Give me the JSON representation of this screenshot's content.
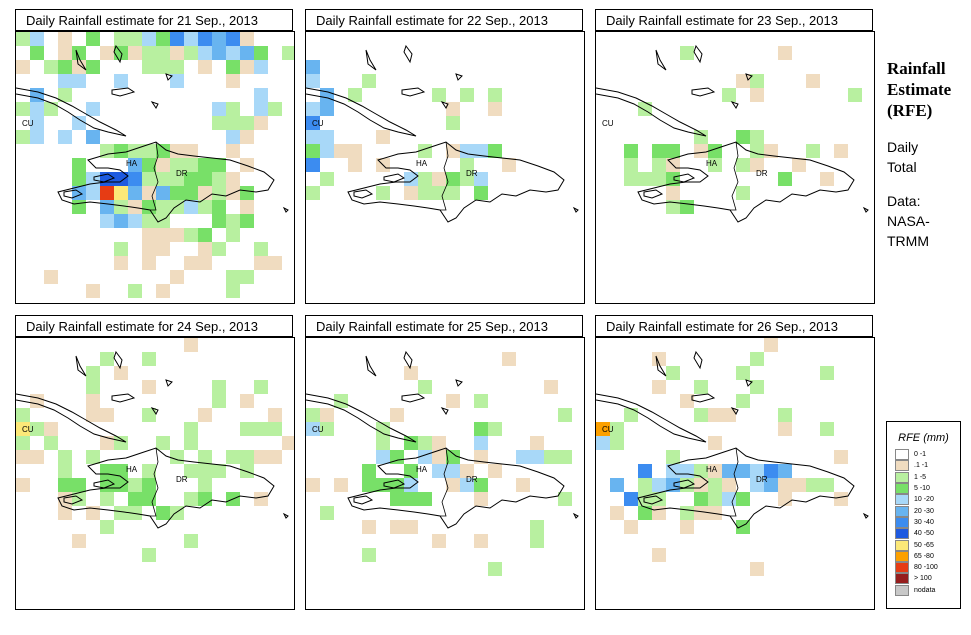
{
  "panels": [
    {
      "title": "Daily Rainfall estimate for  21 Sep., 2013",
      "profile": "d21"
    },
    {
      "title": "Daily Rainfall estimate for  22 Sep., 2013",
      "profile": "d22"
    },
    {
      "title": "Daily Rainfall estimate for  23 Sep., 2013",
      "profile": "d23"
    },
    {
      "title": "Daily Rainfall estimate for  24 Sep., 2013",
      "profile": "d24"
    },
    {
      "title": "Daily Rainfall estimate for  25 Sep., 2013",
      "profile": "d25"
    },
    {
      "title": "Daily Rainfall estimate for  26 Sep., 2013",
      "profile": "d26"
    }
  ],
  "map_labels": {
    "cuba": "CU",
    "haiti": "HA",
    "dominican_republic": "DR"
  },
  "side": {
    "title_lines": [
      "Rainfall",
      "Estimate",
      "(RFE)"
    ],
    "subtitle_lines": [
      "Daily",
      "Total"
    ],
    "source_lines": [
      "Data:",
      "NASA-",
      "TRMM"
    ]
  },
  "legend": {
    "title": "RFE (mm)",
    "items": [
      {
        "label": "0 -1",
        "color": "#ffffff"
      },
      {
        "label": ".1 -1",
        "color": "#f0dcc0"
      },
      {
        "label": "1 -5",
        "color": "#b8f0a0"
      },
      {
        "label": "5 -10",
        "color": "#78e068"
      },
      {
        "label": "10 -20",
        "color": "#a8d8f8"
      },
      {
        "label": "20 -30",
        "color": "#68b4f0"
      },
      {
        "label": "30 -40",
        "color": "#3c8cf0"
      },
      {
        "label": "40 -50",
        "color": "#1e5ae0"
      },
      {
        "label": "50 -65",
        "color": "#fce878"
      },
      {
        "label": "65 -80",
        "color": "#fca000"
      },
      {
        "label": "80 -100",
        "color": "#e63c14"
      },
      {
        "label": "> 100",
        "color": "#961e1e"
      },
      {
        "label": "nodata",
        "color": "#c8c8c8"
      }
    ]
  }
}
